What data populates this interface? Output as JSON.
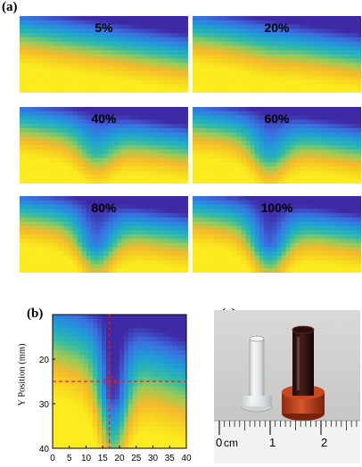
{
  "figure": {
    "panel_a_label": "(a)",
    "panel_b_label": "(b)",
    "panel_c_label": "(c)",
    "colormap": [
      "#3f2aa6",
      "#3a6fe0",
      "#1e9fd6",
      "#32bba4",
      "#9ccb55",
      "#f4b92c",
      "#f7d51f",
      "#fbeb1f"
    ]
  },
  "panel_a": {
    "maps": [
      {
        "label": "5%",
        "dip_depth": 0.0
      },
      {
        "label": "20%",
        "dip_depth": 0.05
      },
      {
        "label": "40%",
        "dip_depth": 0.35
      },
      {
        "label": "60%",
        "dip_depth": 0.45
      },
      {
        "label": "80%",
        "dip_depth": 0.6
      },
      {
        "label": "100%",
        "dip_depth": 0.65
      }
    ]
  },
  "panel_b": {
    "ylabel": "Y Position (mm)",
    "x_ticks": [
      "0",
      "5",
      "10",
      "15",
      "20",
      "25",
      "30",
      "35",
      "40"
    ],
    "y_ticks": [
      "20",
      "30",
      "40"
    ],
    "x_range": [
      0,
      40
    ],
    "y_range": [
      10,
      40
    ],
    "crosshair": {
      "x": 17,
      "y": 25,
      "color": "#e02020"
    }
  },
  "panel_c": {
    "ruler_labels": [
      "0",
      "cm",
      "1",
      "2"
    ]
  }
}
